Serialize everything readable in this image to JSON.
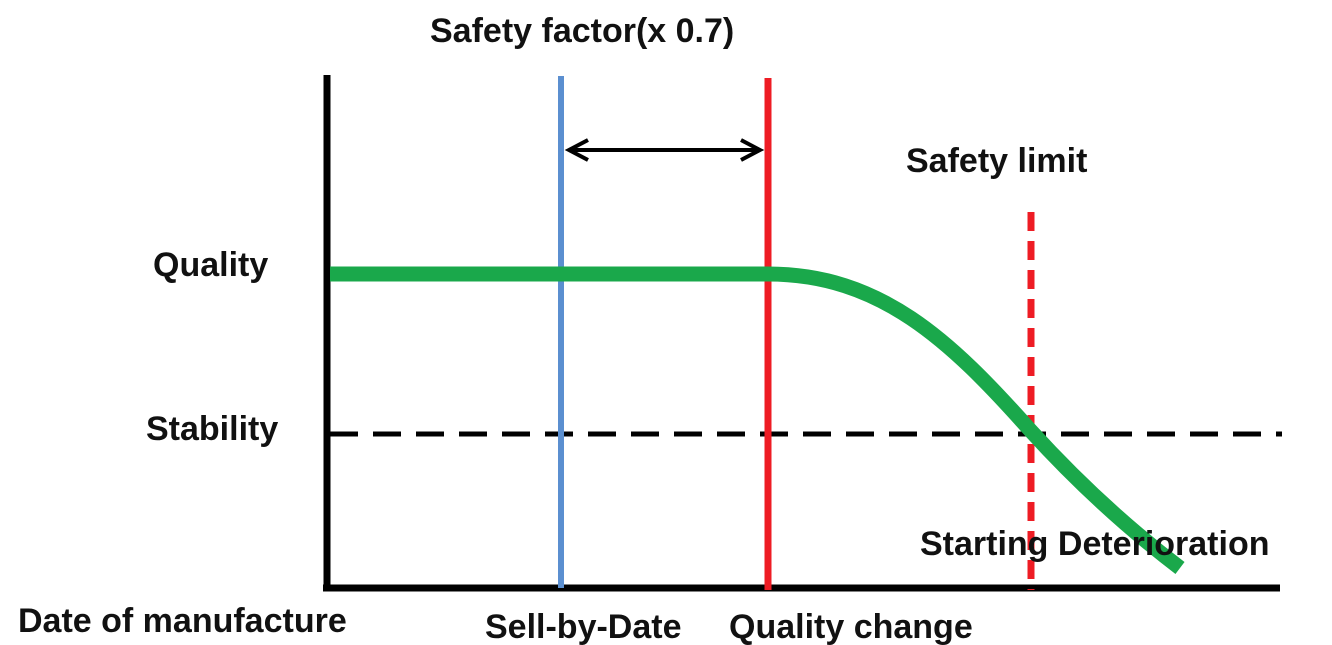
{
  "labels": {
    "safety_factor": "Safety factor(x 0.7)",
    "safety_limit": "Safety limit",
    "quality": "Quality",
    "stability": "Stability",
    "starting_deterioration": "Starting Deterioration",
    "date_of_manufacture": "Date of manufacture",
    "sell_by_date": "Sell-by-Date",
    "quality_change": "Quality change"
  },
  "colors": {
    "axis": "#000000",
    "quality_curve": "#1aa84b",
    "sell_by_line": "#5b8fd0",
    "quality_change_line": "#ee1c24",
    "safety_limit_line": "#ee1c24",
    "stability_line": "#000000",
    "arrow": "#000000",
    "text": "#111111"
  }
}
